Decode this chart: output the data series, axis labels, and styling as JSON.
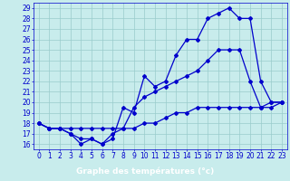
{
  "xlabel": "Graphe des températures (°c)",
  "bg_color": "#c8ecec",
  "plot_bg_color": "#c8ecec",
  "bottom_bar_color": "#2222aa",
  "line_color": "#0000cc",
  "grid_color": "#99cccc",
  "xlim": [
    -0.5,
    23.5
  ],
  "ylim": [
    15.5,
    29.5
  ],
  "xticks": [
    0,
    1,
    2,
    3,
    4,
    5,
    6,
    7,
    8,
    9,
    10,
    11,
    12,
    13,
    14,
    15,
    16,
    17,
    18,
    19,
    20,
    21,
    22,
    23
  ],
  "yticks": [
    16,
    17,
    18,
    19,
    20,
    21,
    22,
    23,
    24,
    25,
    26,
    27,
    28,
    29
  ],
  "line1_x": [
    0,
    1,
    2,
    3,
    4,
    5,
    6,
    7,
    8,
    9,
    10,
    11,
    12,
    13,
    14,
    15,
    16,
    17,
    18,
    19,
    20,
    21,
    22,
    23
  ],
  "line1_y": [
    18,
    17.5,
    17.5,
    17,
    16,
    16.5,
    16,
    16.5,
    19.5,
    19,
    22.5,
    21.5,
    22,
    24.5,
    26,
    26,
    28,
    28.5,
    29,
    28,
    28,
    22,
    20,
    20
  ],
  "line2_x": [
    0,
    1,
    2,
    3,
    4,
    5,
    6,
    7,
    8,
    9,
    10,
    11,
    12,
    13,
    14,
    15,
    16,
    17,
    18,
    19,
    20,
    21,
    22,
    23
  ],
  "line2_y": [
    18,
    17.5,
    17.5,
    17,
    16.5,
    16.5,
    16,
    17,
    17.5,
    19.5,
    20.5,
    21,
    21.5,
    22,
    22.5,
    23,
    24,
    25,
    25,
    25,
    22,
    19.5,
    20,
    20
  ],
  "line3_x": [
    0,
    1,
    2,
    3,
    4,
    5,
    6,
    7,
    8,
    9,
    10,
    11,
    12,
    13,
    14,
    15,
    16,
    17,
    18,
    19,
    20,
    21,
    22,
    23
  ],
  "line3_y": [
    18,
    17.5,
    17.5,
    17.5,
    17.5,
    17.5,
    17.5,
    17.5,
    17.5,
    17.5,
    18,
    18,
    18.5,
    19,
    19,
    19.5,
    19.5,
    19.5,
    19.5,
    19.5,
    19.5,
    19.5,
    19.5,
    20
  ],
  "tick_fontsize": 5.5,
  "xlabel_fontsize": 6.5
}
